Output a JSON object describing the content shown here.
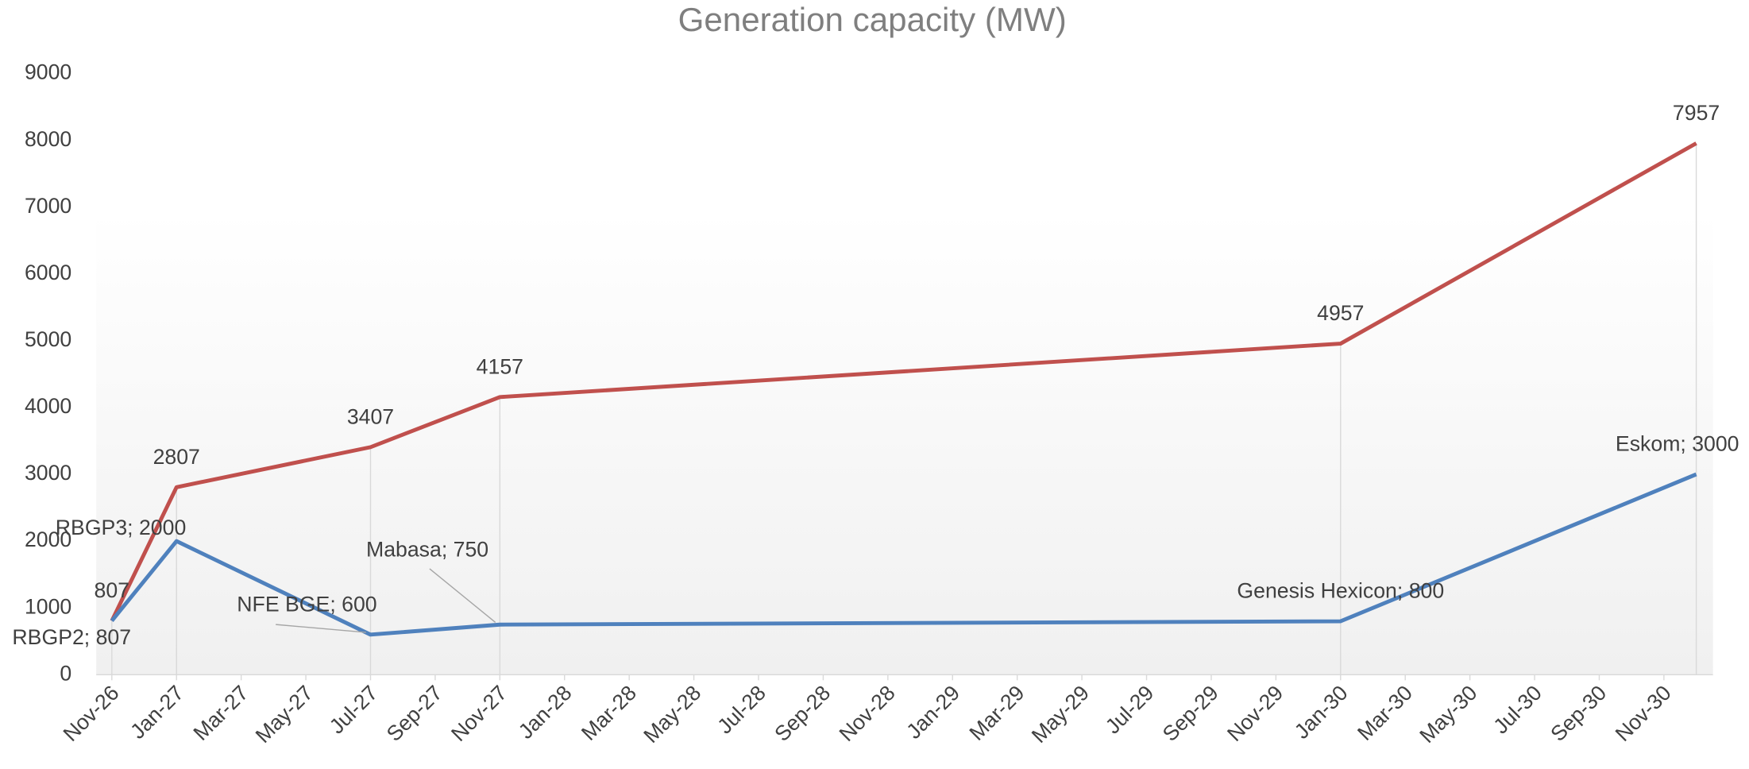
{
  "chart_data": {
    "type": "line",
    "title": "Generation capacity (MW)",
    "x": [
      "2026-11",
      "2027-01",
      "2027-07",
      "2027-11",
      "2030-01",
      "2030-12"
    ],
    "series": [
      {
        "color": "#c0504d",
        "values": [
          807,
          2807,
          3407,
          4157,
          4957,
          7957
        ]
      },
      {
        "color": "#4f81bd",
        "values": [
          807,
          2000,
          600,
          750,
          800,
          3000
        ],
        "value_labels": [
          "RBGP2; 807",
          "RBGP3; 2000",
          "NFE BGE; 600",
          "Mabasa; 750",
          "Genesis Hexicon; 800",
          "Eskom; 3000"
        ]
      }
    ],
    "xlim": [
      "2026-11",
      "2030-12"
    ],
    "xticks": [
      {
        "value": "2026-11",
        "label": "Nov-26"
      },
      {
        "value": "2027-01",
        "label": "Jan-27"
      },
      {
        "value": "2027-03",
        "label": "Mar-27"
      },
      {
        "value": "2027-05",
        "label": "May-27"
      },
      {
        "value": "2027-07",
        "label": "Jul-27"
      },
      {
        "value": "2027-09",
        "label": "Sep-27"
      },
      {
        "value": "2027-11",
        "label": "Nov-27"
      },
      {
        "value": "2028-01",
        "label": "Jan-28"
      },
      {
        "value": "2028-03",
        "label": "Mar-28"
      },
      {
        "value": "2028-05",
        "label": "May-28"
      },
      {
        "value": "2028-07",
        "label": "Jul-28"
      },
      {
        "value": "2028-09",
        "label": "Sep-28"
      },
      {
        "value": "2028-11",
        "label": "Nov-28"
      },
      {
        "value": "2029-01",
        "label": "Jan-29"
      },
      {
        "value": "2029-03",
        "label": "Mar-29"
      },
      {
        "value": "2029-05",
        "label": "May-29"
      },
      {
        "value": "2029-07",
        "label": "Jul-29"
      },
      {
        "value": "2029-09",
        "label": "Sep-29"
      },
      {
        "value": "2029-11",
        "label": "Nov-29"
      },
      {
        "value": "2030-01",
        "label": "Jan-30"
      },
      {
        "value": "2030-03",
        "label": "Mar-30"
      },
      {
        "value": "2030-05",
        "label": "May-30"
      },
      {
        "value": "2030-07",
        "label": "Jul-30"
      },
      {
        "value": "2030-09",
        "label": "Sep-30"
      },
      {
        "value": "2030-11",
        "label": "Nov-30"
      }
    ],
    "ylim": [
      0,
      9000
    ],
    "yticks": [
      0,
      1000,
      2000,
      3000,
      4000,
      5000,
      6000,
      7000,
      8000,
      9000
    ]
  }
}
